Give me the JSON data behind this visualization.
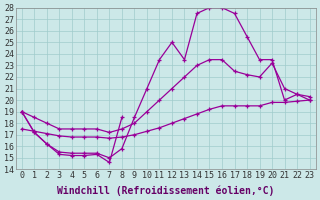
{
  "xlabel": "Windchill (Refroidissement éolien,°C)",
  "bg_color": "#cce8e8",
  "line_color": "#990099",
  "xlim": [
    -0.5,
    23.5
  ],
  "ylim": [
    14,
    28
  ],
  "xticks": [
    0,
    1,
    2,
    3,
    4,
    5,
    6,
    7,
    8,
    9,
    10,
    11,
    12,
    13,
    14,
    15,
    16,
    17,
    18,
    19,
    20,
    21,
    22,
    23
  ],
  "yticks": [
    14,
    15,
    16,
    17,
    18,
    19,
    20,
    21,
    22,
    23,
    24,
    25,
    26,
    27,
    28
  ],
  "line1_x": [
    0,
    1,
    2,
    3,
    4,
    5,
    6,
    7,
    8
  ],
  "line1_y": [
    19.0,
    17.2,
    16.2,
    15.3,
    15.2,
    15.2,
    15.3,
    14.6,
    18.5
  ],
  "line2_x": [
    0,
    1,
    2,
    3,
    4,
    5,
    6,
    7,
    8,
    9,
    10,
    11,
    12,
    13,
    14,
    15,
    16,
    17,
    18,
    19,
    20,
    21,
    22,
    23
  ],
  "line2_y": [
    19.0,
    17.2,
    16.2,
    15.5,
    15.4,
    15.4,
    15.4,
    15.0,
    15.8,
    18.5,
    21.0,
    23.5,
    25.0,
    23.5,
    27.5,
    28.0,
    28.0,
    27.5,
    25.5,
    23.5,
    23.5,
    20.0,
    20.5,
    20.0
  ],
  "line3_x": [
    0,
    1,
    2,
    3,
    4,
    5,
    6,
    7,
    8,
    9,
    10,
    11,
    12,
    13,
    14,
    15,
    16,
    17,
    18,
    19,
    20,
    21,
    22,
    23
  ],
  "line3_y": [
    19.0,
    18.5,
    18.0,
    17.5,
    17.5,
    17.5,
    17.5,
    17.2,
    17.5,
    18.0,
    19.0,
    20.0,
    21.0,
    22.0,
    23.0,
    23.5,
    23.5,
    22.5,
    22.2,
    22.0,
    23.2,
    21.0,
    20.5,
    20.3
  ],
  "line4_x": [
    0,
    1,
    2,
    3,
    4,
    5,
    6,
    7,
    8,
    9,
    10,
    11,
    12,
    13,
    14,
    15,
    16,
    17,
    18,
    19,
    20,
    21,
    22,
    23
  ],
  "line4_y": [
    17.5,
    17.3,
    17.1,
    16.9,
    16.8,
    16.8,
    16.8,
    16.7,
    16.8,
    17.0,
    17.3,
    17.6,
    18.0,
    18.4,
    18.8,
    19.2,
    19.5,
    19.5,
    19.5,
    19.5,
    19.8,
    19.8,
    19.9,
    20.0
  ],
  "grid_color": "#a0cccc",
  "xlabel_fontsize": 7,
  "tick_fontsize": 6
}
